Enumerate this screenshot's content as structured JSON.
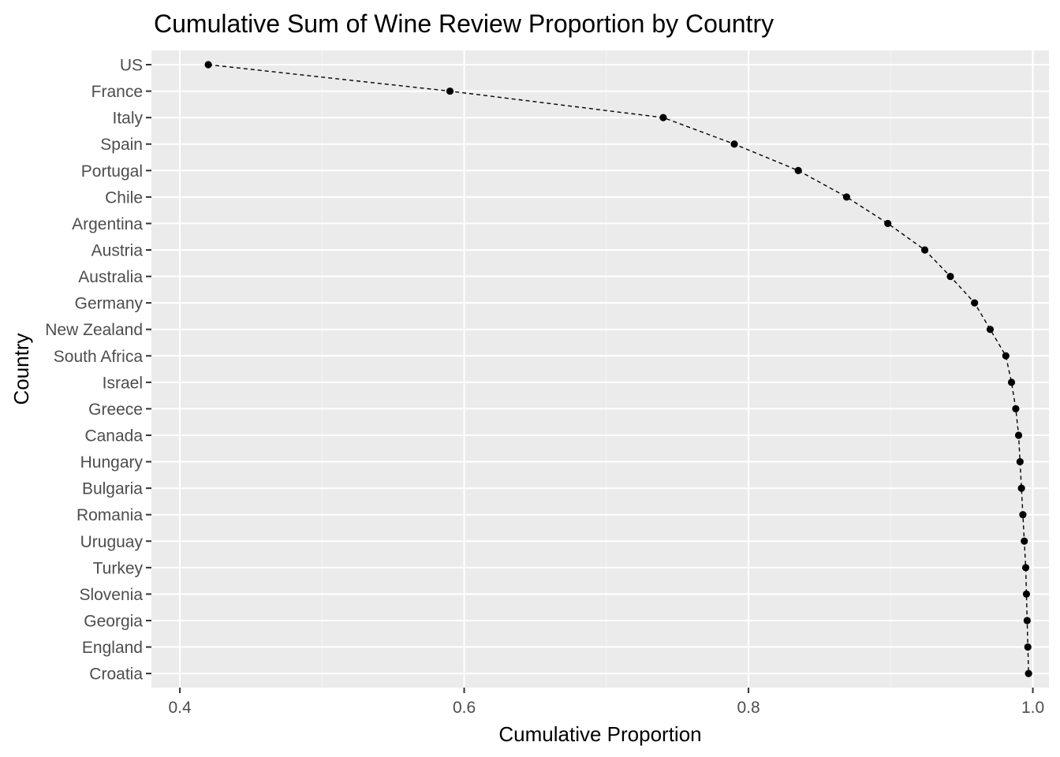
{
  "chart_data": {
    "type": "line",
    "title": "Cumulative Sum of Wine Review Proportion by Country",
    "xlabel": "Cumulative Proportion",
    "ylabel": "Country",
    "xlim": [
      0.38,
      1.005
    ],
    "x_ticks": [
      0.4,
      0.6,
      0.8,
      1.0
    ],
    "x_tick_labels": [
      "0.4",
      "0.6",
      "0.8",
      "1.0"
    ],
    "grid": true,
    "line_style": "dashed",
    "categories": [
      "US",
      "France",
      "Italy",
      "Spain",
      "Portugal",
      "Chile",
      "Argentina",
      "Austria",
      "Australia",
      "Germany",
      "New Zealand",
      "South Africa",
      "Israel",
      "Greece",
      "Canada",
      "Hungary",
      "Bulgaria",
      "Romania",
      "Uruguay",
      "Turkey",
      "Slovenia",
      "Georgia",
      "England",
      "Croatia"
    ],
    "values": [
      0.42,
      0.59,
      0.74,
      0.79,
      0.835,
      0.869,
      0.898,
      0.924,
      0.942,
      0.959,
      0.97,
      0.981,
      0.985,
      0.988,
      0.99,
      0.991,
      0.992,
      0.993,
      0.994,
      0.995,
      0.9955,
      0.996,
      0.9965,
      0.997
    ],
    "colors": {
      "panel_background": "#ebebeb",
      "grid_major": "#ffffff",
      "grid_minor": "#f5f5f5",
      "point": "#000000",
      "line": "#000000",
      "tick_text": "#4d4d4d",
      "tick_mark": "#333333"
    }
  }
}
